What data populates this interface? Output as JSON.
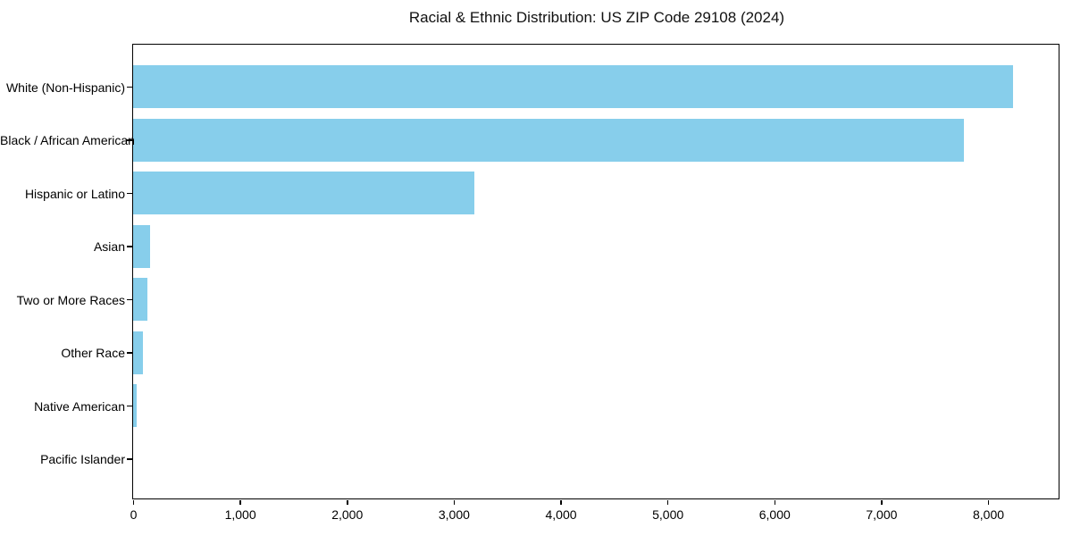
{
  "chart_data": {
    "type": "bar",
    "orientation": "horizontal",
    "title": "Racial & Ethnic Distribution: US ZIP Code 29108 (2024)",
    "categories": [
      "White (Non-Hispanic)",
      "Black / African American",
      "Hispanic or Latino",
      "Asian",
      "Two or More Races",
      "Other Race",
      "Native American",
      "Pacific Islander"
    ],
    "values": [
      8230,
      7770,
      3190,
      160,
      130,
      90,
      35,
      0
    ],
    "xlabel": "",
    "ylabel": "",
    "xlim": [
      0,
      8660
    ],
    "xticks": [
      0,
      1000,
      2000,
      3000,
      4000,
      5000,
      6000,
      7000,
      8000
    ],
    "xtick_labels": [
      "0",
      "1,000",
      "2,000",
      "3,000",
      "4,000",
      "5,000",
      "6,000",
      "7,000",
      "8,000"
    ],
    "bar_color": "#87CEEB",
    "axis_color": "#000000",
    "background": "#FFFFFF",
    "grid": false,
    "legend": null
  }
}
